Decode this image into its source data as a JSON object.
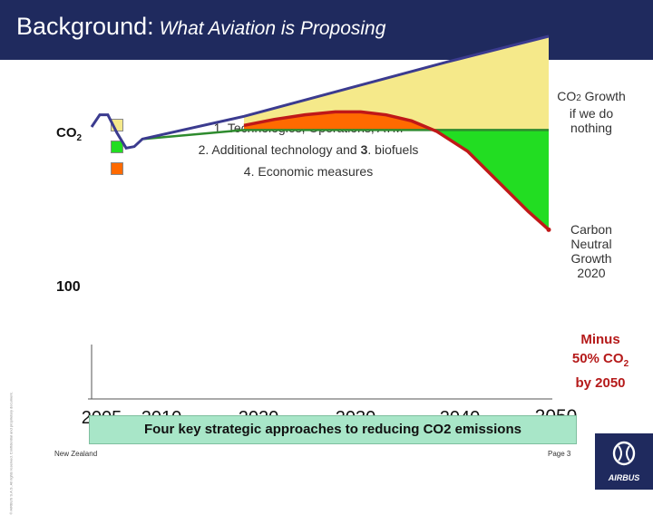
{
  "header": {
    "title": "Background:",
    "subtitle": "What Aviation is Proposing",
    "background_color": "#1f2a5e"
  },
  "legend": {
    "co2_label": "CO",
    "co2_sub": "2",
    "items": [
      {
        "color": "#f5e98a"
      },
      {
        "color": "#22dd22"
      },
      {
        "color": "#ff6a00"
      }
    ],
    "line1": "1. Technologies, Operations, ATM",
    "line2_pre": "2. Additional technology and ",
    "line2_bold": "3",
    "line2_post": ". biofuels",
    "line3": "4. Economic measures"
  },
  "chart_data": {
    "type": "area",
    "x_ticks": [
      2005,
      2010,
      2020,
      2030,
      2040,
      2050
    ],
    "y_reference": {
      "label": "100",
      "value": 100
    },
    "xlim": [
      2005,
      2050
    ],
    "ylim": [
      15,
      135
    ],
    "series": [
      {
        "name": "CO2 Growth if we do nothing",
        "color": "#3b3b8f",
        "points": [
          [
            2005.0,
            105
          ],
          [
            2005.8,
            109
          ],
          [
            2006.6,
            109
          ],
          [
            2007.5,
            103
          ],
          [
            2008.4,
            98
          ],
          [
            2009.2,
            98.5
          ],
          [
            2010.0,
            101
          ],
          [
            2020.0,
            108.5
          ],
          [
            2030.0,
            117.5
          ],
          [
            2040.0,
            126.5
          ],
          [
            2050.0,
            135
          ]
        ]
      },
      {
        "name": "Carbon Neutral Growth 2020",
        "color": "#2e8b2e",
        "points": [
          [
            2010.0,
            101
          ],
          [
            2020.0,
            104
          ],
          [
            2050.0,
            104
          ]
        ]
      },
      {
        "name": "Additional technology and biofuels",
        "color": "#c01818",
        "points": [
          [
            2020.0,
            105.5
          ],
          [
            2023.0,
            107.5
          ],
          [
            2026.0,
            109
          ],
          [
            2029.0,
            110
          ],
          [
            2031.5,
            110
          ],
          [
            2034.0,
            109
          ],
          [
            2036.5,
            107
          ],
          [
            2039.0,
            103.5
          ],
          [
            2042.0,
            97
          ],
          [
            2045.0,
            87
          ],
          [
            2048.0,
            77
          ],
          [
            2050.0,
            71
          ]
        ]
      }
    ],
    "annotations": {
      "growth_if_nothing": [
        "CO",
        "2",
        " Growth if we do nothing"
      ],
      "carbon_neutral": "Carbon Neutral Growth 2020",
      "minus_50_line1": "Minus",
      "minus_50_line2_pre": "50% CO",
      "minus_50_line2_sub": "2",
      "minus_50_line3": "by 2050"
    }
  },
  "banner": {
    "text": "Four key strategic approaches to reducing CO2 emissions",
    "color": "#a8e6c8"
  },
  "footer": {
    "left": "New Zealand",
    "right": "Page 3",
    "side_text": "© AIRBUS S.A.S. All rights reserved. Confidential and proprietary document.",
    "logo": "AIRBUS"
  }
}
